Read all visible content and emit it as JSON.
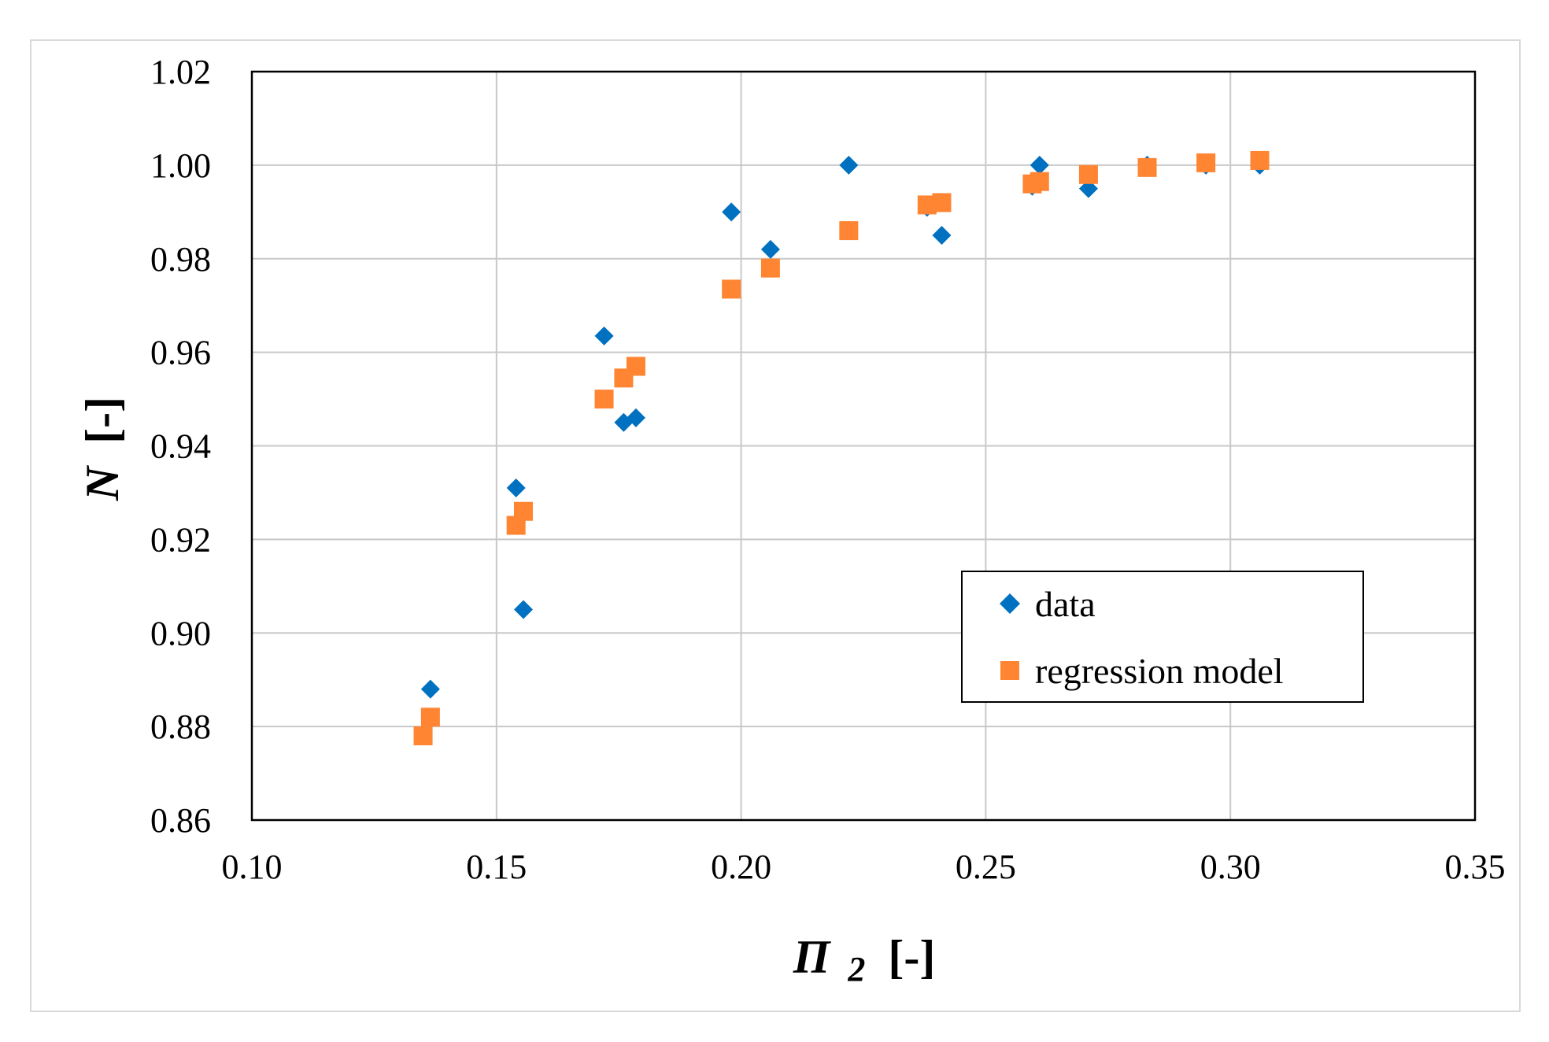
{
  "chart_data": {
    "type": "scatter",
    "title": "",
    "xlabel": {
      "symbol": "Π",
      "subscript": "2",
      "unit": "[-]"
    },
    "ylabel": {
      "symbol": "N",
      "unit": "[-]"
    },
    "xlim": [
      0.1,
      0.35
    ],
    "ylim": [
      0.86,
      1.02
    ],
    "x_ticks": [
      "0.10",
      "0.15",
      "0.20",
      "0.25",
      "0.30",
      "0.35"
    ],
    "y_ticks": [
      "0.86",
      "0.88",
      "0.90",
      "0.92",
      "0.94",
      "0.96",
      "0.98",
      "1.00",
      "1.02"
    ],
    "grid": true,
    "legend_position": "bottom-right",
    "series": [
      {
        "name": "data",
        "marker": "diamond",
        "color": "#0070C0",
        "points": [
          [
            0.135,
            0.878
          ],
          [
            0.1365,
            0.888
          ],
          [
            0.154,
            0.931
          ],
          [
            0.1555,
            0.905
          ],
          [
            0.172,
            0.9635
          ],
          [
            0.176,
            0.945
          ],
          [
            0.1785,
            0.946
          ],
          [
            0.198,
            0.99
          ],
          [
            0.206,
            0.982
          ],
          [
            0.222,
            1.0
          ],
          [
            0.238,
            0.991
          ],
          [
            0.241,
            0.985
          ],
          [
            0.2595,
            0.9955
          ],
          [
            0.261,
            1.0
          ],
          [
            0.271,
            0.995
          ],
          [
            0.283,
            1.0
          ],
          [
            0.295,
            1.0
          ],
          [
            0.306,
            1.0
          ]
        ]
      },
      {
        "name": "regression model",
        "marker": "square",
        "color": "#FF8533",
        "points": [
          [
            0.135,
            0.878
          ],
          [
            0.1365,
            0.882
          ],
          [
            0.154,
            0.923
          ],
          [
            0.1555,
            0.926
          ],
          [
            0.172,
            0.95
          ],
          [
            0.176,
            0.9545
          ],
          [
            0.1785,
            0.957
          ],
          [
            0.198,
            0.9735
          ],
          [
            0.206,
            0.978
          ],
          [
            0.222,
            0.986
          ],
          [
            0.238,
            0.9915
          ],
          [
            0.241,
            0.992
          ],
          [
            0.2595,
            0.996
          ],
          [
            0.261,
            0.9965
          ],
          [
            0.271,
            0.998
          ],
          [
            0.283,
            0.9995
          ],
          [
            0.295,
            1.0005
          ],
          [
            0.306,
            1.001
          ]
        ]
      }
    ]
  }
}
